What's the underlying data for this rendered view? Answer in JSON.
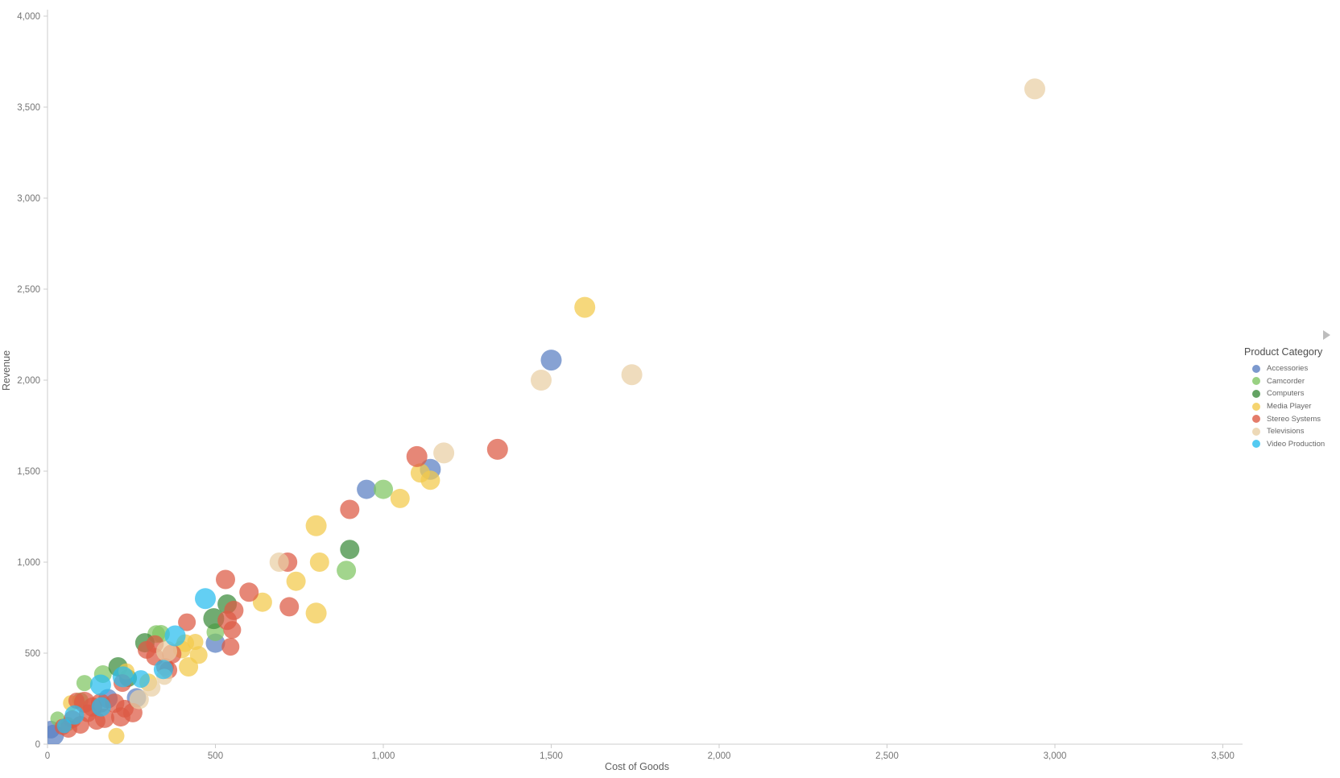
{
  "chart_data": {
    "type": "scatter",
    "title": "",
    "xlabel": "Cost of Goods",
    "ylabel": "Revenue",
    "xlim": [
      0,
      3550
    ],
    "ylim": [
      0,
      4000
    ],
    "x_ticks": [
      0,
      500,
      1000,
      1500,
      2000,
      2500,
      3000,
      3500
    ],
    "y_ticks": [
      0,
      500,
      1000,
      1500,
      2000,
      2500,
      3000,
      3500,
      4000
    ],
    "grid": false,
    "legend": {
      "title": "Product Category",
      "position": "right",
      "expand_icon": "play-right-icon",
      "items": [
        {
          "label": "Accessories",
          "color": "#5b80c2"
        },
        {
          "label": "Camcorder",
          "color": "#7fc563"
        },
        {
          "label": "Computers",
          "color": "#3d8c3d"
        },
        {
          "label": "Media Player",
          "color": "#f2c94c"
        },
        {
          "label": "Stereo Systems",
          "color": "#dd5b45"
        },
        {
          "label": "Televisions",
          "color": "#e9cfa5"
        },
        {
          "label": "Video Production",
          "color": "#29bdee"
        }
      ]
    },
    "series": [
      {
        "name": "Accessories",
        "color": "#5b80c2",
        "points": [
          [
            1500,
            2110,
            13
          ],
          [
            1140,
            1510,
            13
          ],
          [
            950,
            1400,
            12
          ],
          [
            500,
            555,
            12
          ],
          [
            265,
            255,
            12
          ],
          [
            180,
            250,
            12
          ],
          [
            18,
            50,
            13
          ],
          [
            10,
            80,
            11
          ]
        ]
      },
      {
        "name": "Camcorder",
        "color": "#7fc563",
        "points": [
          [
            1000,
            1400,
            12
          ],
          [
            890,
            955,
            12
          ],
          [
            500,
            615,
            11
          ],
          [
            338,
            606,
            11
          ],
          [
            324,
            605,
            11
          ],
          [
            165,
            385,
            11
          ],
          [
            110,
            336,
            10
          ],
          [
            98,
            240,
            10
          ],
          [
            60,
            110,
            9
          ],
          [
            30,
            140,
            9
          ]
        ]
      },
      {
        "name": "Computers",
        "color": "#3d8c3d",
        "points": [
          [
            900,
            1070,
            12
          ],
          [
            535,
            770,
            12
          ],
          [
            495,
            690,
            13
          ],
          [
            290,
            557,
            12
          ],
          [
            240,
            363,
            11
          ],
          [
            210,
            425,
            12
          ]
        ]
      },
      {
        "name": "Media Player",
        "color": "#f2c94c",
        "points": [
          [
            1600,
            2400,
            13
          ],
          [
            1140,
            1450,
            12
          ],
          [
            1110,
            1490,
            12
          ],
          [
            1050,
            1350,
            12
          ],
          [
            800,
            1200,
            13
          ],
          [
            810,
            1000,
            12
          ],
          [
            740,
            895,
            12
          ],
          [
            800,
            720,
            13
          ],
          [
            640,
            780,
            12
          ],
          [
            450,
            490,
            11
          ],
          [
            440,
            562,
            10
          ],
          [
            420,
            425,
            12
          ],
          [
            410,
            555,
            11
          ],
          [
            400,
            520,
            11
          ],
          [
            300,
            340,
            11
          ],
          [
            235,
            400,
            10
          ],
          [
            205,
            45,
            10
          ],
          [
            70,
            225,
            10
          ]
        ]
      },
      {
        "name": "Stereo Systems",
        "color": "#dd5b45",
        "points": [
          [
            1340,
            1620,
            13
          ],
          [
            1100,
            1580,
            13
          ],
          [
            900,
            1290,
            12
          ],
          [
            720,
            755,
            12
          ],
          [
            715,
            1000,
            12
          ],
          [
            600,
            835,
            12
          ],
          [
            555,
            735,
            12
          ],
          [
            550,
            628,
            11
          ],
          [
            545,
            535,
            11
          ],
          [
            535,
            680,
            12
          ],
          [
            530,
            905,
            12
          ],
          [
            415,
            670,
            11
          ],
          [
            370,
            495,
            12
          ],
          [
            360,
            407,
            11
          ],
          [
            350,
            425,
            11
          ],
          [
            320,
            550,
            11
          ],
          [
            320,
            480,
            11
          ],
          [
            295,
            518,
            11
          ],
          [
            254,
            173,
            12
          ],
          [
            230,
            195,
            11
          ],
          [
            223,
            336,
            11
          ],
          [
            218,
            150,
            12
          ],
          [
            200,
            225,
            12
          ],
          [
            170,
            142,
            12
          ],
          [
            158,
            226,
            12
          ],
          [
            146,
            128,
            11
          ],
          [
            134,
            204,
            12
          ],
          [
            120,
            170,
            11
          ],
          [
            110,
            230,
            13
          ],
          [
            98,
            106,
            11
          ],
          [
            86,
            239,
            10
          ],
          [
            74,
            137,
            11
          ],
          [
            62,
            84,
            11
          ],
          [
            45,
            95,
            10
          ]
        ]
      },
      {
        "name": "Televisions",
        "color": "#e9cfa5",
        "points": [
          [
            2940,
            3600,
            13
          ],
          [
            1740,
            2030,
            13
          ],
          [
            1470,
            2000,
            13
          ],
          [
            1180,
            1600,
            13
          ],
          [
            690,
            1000,
            12
          ],
          [
            355,
            510,
            13
          ],
          [
            348,
            370,
            10
          ],
          [
            310,
            310,
            11
          ],
          [
            273,
            245,
            12
          ]
        ]
      },
      {
        "name": "Video Production",
        "color": "#29bdee",
        "points": [
          [
            470,
            800,
            13
          ],
          [
            380,
            595,
            13
          ],
          [
            345,
            410,
            12
          ],
          [
            278,
            358,
            11
          ],
          [
            225,
            370,
            13
          ],
          [
            160,
            205,
            12
          ],
          [
            158,
            325,
            13
          ],
          [
            80,
            160,
            12
          ],
          [
            50,
            100,
            9
          ]
        ]
      }
    ]
  }
}
